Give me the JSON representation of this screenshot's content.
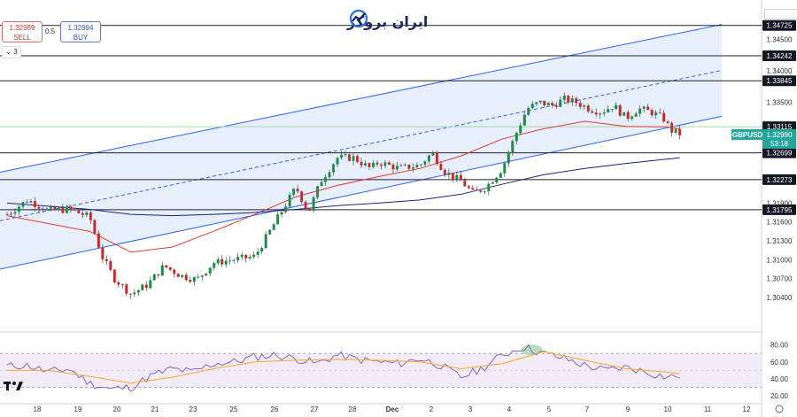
{
  "logo": {
    "text": "ایران بروکر",
    "icon": "swirl-chart-icon"
  },
  "trade": {
    "sell_price": "1.32989",
    "sell_label": "SELL",
    "spread": "0.5",
    "buy_price": "1.32994",
    "buy_label": "BUY"
  },
  "interval_selector": "3",
  "chart_data": [
    {
      "type": "candlestick",
      "symbol": "GBPUSD",
      "last_price": "1.32990",
      "countdown": "53:18",
      "ylim": [
        1.2985,
        1.3496
      ],
      "y_ticks": [
        "1.34500",
        "1.34000",
        "1.33500",
        "1.31900",
        "1.31600",
        "1.31300",
        "1.31000",
        "1.30700",
        "1.30400"
      ],
      "x_ticks": [
        "18",
        "19",
        "20",
        "21",
        "23",
        "25",
        "26",
        "27",
        "28",
        "Dec",
        "2",
        "3",
        "4",
        "5",
        "7",
        "9",
        "10",
        "11",
        "12"
      ],
      "horizontal_levels": [
        "1.34725",
        "1.34242",
        "1.33845",
        "1.33115",
        "1.32699",
        "1.32273",
        "1.31795"
      ],
      "level_style": {
        "highlight_color": "#a8d8a8",
        "line_color": "#222222"
      },
      "channel": {
        "lower": [
          [
            "18 start",
            1.3085
          ],
          [
            "11",
            1.3328
          ]
        ],
        "upper": [
          [
            "18 start",
            1.3239
          ],
          [
            "11",
            1.3474
          ]
        ],
        "mid": [
          [
            "18 start",
            1.3162
          ],
          [
            "11",
            1.3401
          ]
        ],
        "color": "#2962ff"
      },
      "ma_series": [
        {
          "color": "#e53935",
          "points": [
            [
              0,
              1.317
            ],
            [
              2,
              1.3145
            ],
            [
              3,
              1.3112
            ],
            [
              4,
              1.312
            ],
            [
              5,
              1.3145
            ],
            [
              6,
              1.3172
            ],
            [
              7,
              1.32
            ],
            [
              8,
              1.3218
            ],
            [
              9,
              1.3232
            ],
            [
              10,
              1.3245
            ],
            [
              11,
              1.3265
            ],
            [
              12,
              1.3292
            ],
            [
              13,
              1.3308
            ],
            [
              14,
              1.332
            ],
            [
              15,
              1.3312
            ],
            [
              16,
              1.3311
            ],
            [
              16.3,
              1.3308
            ]
          ]
        },
        {
          "color": "#1a237e",
          "points": [
            [
              0,
              1.319
            ],
            [
              1,
              1.3185
            ],
            [
              2,
              1.318
            ],
            [
              3,
              1.3172
            ],
            [
              4,
              1.317
            ],
            [
              5,
              1.3172
            ],
            [
              6,
              1.3175
            ],
            [
              7,
              1.318
            ],
            [
              8,
              1.3186
            ],
            [
              9,
              1.319
            ],
            [
              10,
              1.3195
            ],
            [
              11,
              1.3204
            ],
            [
              12,
              1.322
            ],
            [
              13,
              1.3235
            ],
            [
              14,
              1.3245
            ],
            [
              15,
              1.3253
            ],
            [
              16,
              1.326
            ],
            [
              16.3,
              1.3262
            ]
          ]
        }
      ],
      "candles_path": [
        [
          0,
          1.3172
        ],
        [
          0.5,
          1.3195
        ],
        [
          1,
          1.3178
        ],
        [
          1.5,
          1.318
        ],
        [
          2,
          1.3168
        ],
        [
          2.3,
          1.3105
        ],
        [
          2.6,
          1.307
        ],
        [
          3,
          1.3045
        ],
        [
          3.4,
          1.306
        ],
        [
          3.8,
          1.309
        ],
        [
          4.2,
          1.3075
        ],
        [
          4.6,
          1.3068
        ],
        [
          5,
          1.3095
        ],
        [
          5.5,
          1.31
        ],
        [
          6,
          1.3105
        ],
        [
          6.5,
          1.316
        ],
        [
          7,
          1.3215
        ],
        [
          7.3,
          1.3175
        ],
        [
          7.6,
          1.3225
        ],
        [
          8,
          1.3262
        ],
        [
          8.4,
          1.3262
        ],
        [
          8.8,
          1.3245
        ],
        [
          9,
          1.3255
        ],
        [
          9.5,
          1.3245
        ],
        [
          10,
          1.325
        ],
        [
          10.3,
          1.327
        ],
        [
          10.6,
          1.324
        ],
        [
          11,
          1.3225
        ],
        [
          11.3,
          1.3205
        ],
        [
          11.6,
          1.3215
        ],
        [
          12,
          1.3245
        ],
        [
          12.3,
          1.3295
        ],
        [
          12.6,
          1.334
        ],
        [
          12.9,
          1.335
        ],
        [
          13.2,
          1.3345
        ],
        [
          13.5,
          1.3355
        ],
        [
          13.8,
          1.335
        ],
        [
          14.1,
          1.334
        ],
        [
          14.4,
          1.3335
        ],
        [
          14.7,
          1.3345
        ],
        [
          15,
          1.3325
        ],
        [
          15.3,
          1.334
        ],
        [
          15.6,
          1.3335
        ],
        [
          15.9,
          1.3325
        ],
        [
          16.1,
          1.3305
        ],
        [
          16.3,
          1.33
        ]
      ],
      "indicator": {
        "y_ticks": [
          "80.00",
          "60.00",
          "40.00",
          "20.00"
        ],
        "ylim": [
          15,
          90
        ],
        "band": [
          30,
          70
        ],
        "rsi": [
          [
            0,
            55
          ],
          [
            0.5,
            56
          ],
          [
            1,
            48
          ],
          [
            1.5,
            52
          ],
          [
            2,
            35
          ],
          [
            2.5,
            28
          ],
          [
            3,
            30
          ],
          [
            3.5,
            44
          ],
          [
            4,
            52
          ],
          [
            4.5,
            48
          ],
          [
            5,
            58
          ],
          [
            5.5,
            60
          ],
          [
            6,
            66
          ],
          [
            6.5,
            68
          ],
          [
            7,
            64
          ],
          [
            7.5,
            58
          ],
          [
            8,
            68
          ],
          [
            8.5,
            63
          ],
          [
            9,
            60
          ],
          [
            9.5,
            58
          ],
          [
            10,
            64
          ],
          [
            10.5,
            56
          ],
          [
            11,
            42
          ],
          [
            11.5,
            52
          ],
          [
            12,
            68
          ],
          [
            12.5,
            78
          ],
          [
            13,
            70
          ],
          [
            13.5,
            64
          ],
          [
            14,
            56
          ],
          [
            14.5,
            50
          ],
          [
            15,
            54
          ],
          [
            15.5,
            48
          ],
          [
            16,
            42
          ],
          [
            16.3,
            44
          ]
        ],
        "signal": [
          [
            0,
            50
          ],
          [
            1,
            50
          ],
          [
            2,
            43
          ],
          [
            3,
            35
          ],
          [
            4,
            42
          ],
          [
            5,
            52
          ],
          [
            6,
            60
          ],
          [
            7,
            62
          ],
          [
            8,
            63
          ],
          [
            9,
            62
          ],
          [
            10,
            60
          ],
          [
            11,
            52
          ],
          [
            12,
            58
          ],
          [
            13,
            72
          ],
          [
            14,
            62
          ],
          [
            15,
            52
          ],
          [
            16,
            48
          ],
          [
            16.3,
            46
          ]
        ],
        "rsi_color": "#7e57c2",
        "signal_color": "#f9a825"
      }
    }
  ]
}
